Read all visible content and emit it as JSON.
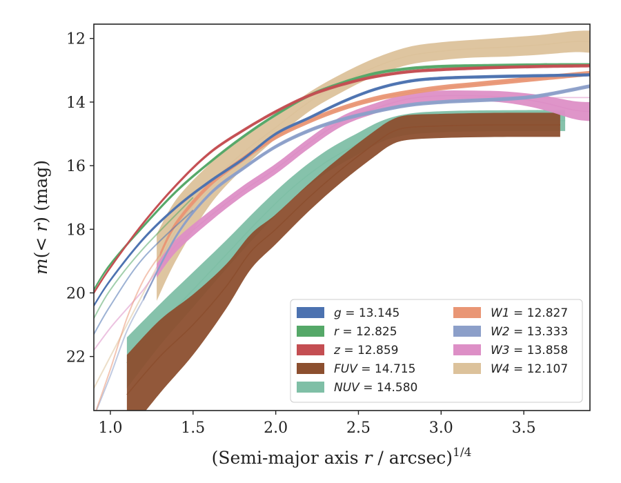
{
  "chart_data": {
    "type": "line",
    "xlabel": "(Semi-major axis r / arcsec)",
    "xlabel_var": "r",
    "xlabel_sup": "1/4",
    "ylabel": "m(< r) (mag)",
    "xlim": [
      0.9,
      3.9
    ],
    "ylim": [
      23.7,
      11.55
    ],
    "y_inverted": true,
    "xticks": [
      "1.0",
      "1.5",
      "2.0",
      "2.5",
      "3.0",
      "3.5"
    ],
    "xtick_values": [
      1.0,
      1.5,
      2.0,
      2.5,
      3.0,
      3.5
    ],
    "yticks": [
      "12",
      "14",
      "16",
      "18",
      "20",
      "22"
    ],
    "ytick_values": [
      12,
      14,
      16,
      18,
      20,
      22
    ],
    "grid": false,
    "legend_position": "lower-right",
    "series": [
      {
        "name": "g",
        "label_value": "= 13.145",
        "color": "#4c72b0",
        "band_width": 0.05,
        "x": [
          0.9,
          1.0,
          1.2,
          1.4,
          1.6,
          1.8,
          2.0,
          2.2,
          2.4,
          2.6,
          2.8,
          3.0,
          3.3,
          3.6,
          3.9
        ],
        "y": [
          20.4,
          19.6,
          18.3,
          17.3,
          16.5,
          15.8,
          15.0,
          14.5,
          14.0,
          13.6,
          13.35,
          13.25,
          13.2,
          13.17,
          13.145
        ],
        "faint_x": [
          0.9,
          1.0,
          1.2,
          1.5
        ],
        "faint_y": [
          21.3,
          20.4,
          18.9,
          17.4
        ]
      },
      {
        "name": "r",
        "label_value": "= 12.825",
        "color": "#55a868",
        "band_width": 0.05,
        "x": [
          0.9,
          1.0,
          1.2,
          1.4,
          1.6,
          1.8,
          2.0,
          2.2,
          2.4,
          2.6,
          2.8,
          3.0,
          3.3,
          3.6,
          3.9
        ],
        "y": [
          19.9,
          19.1,
          17.9,
          16.8,
          15.9,
          15.1,
          14.4,
          13.8,
          13.4,
          13.1,
          12.95,
          12.88,
          12.85,
          12.83,
          12.825
        ],
        "faint_x": [
          0.9,
          1.0,
          1.2,
          1.5
        ],
        "faint_y": [
          20.8,
          19.9,
          18.6,
          17.0
        ]
      },
      {
        "name": "z",
        "label_value": "= 12.859",
        "color": "#c44e52",
        "band_width": 0.05,
        "x": [
          0.9,
          1.0,
          1.2,
          1.4,
          1.6,
          1.8,
          2.0,
          2.2,
          2.4,
          2.6,
          2.8,
          3.0,
          3.3,
          3.6,
          3.9
        ],
        "y": [
          20.0,
          19.2,
          17.8,
          16.6,
          15.6,
          14.9,
          14.3,
          13.8,
          13.45,
          13.2,
          13.05,
          12.98,
          12.92,
          12.88,
          12.859
        ]
      },
      {
        "name": "FUV",
        "label_value": "= 14.715",
        "color": "#8c4f2f",
        "band_width": 0.35,
        "x": [
          1.1,
          1.3,
          1.5,
          1.7,
          1.85,
          2.0,
          2.2,
          2.4,
          2.6,
          2.7,
          2.8,
          3.0,
          3.3,
          3.72
        ],
        "y": [
          23.2,
          22.0,
          21.0,
          19.8,
          18.7,
          18.0,
          17.0,
          16.1,
          15.3,
          14.95,
          14.8,
          14.75,
          14.72,
          14.715
        ],
        "band_extra": [
          0.9,
          0.8,
          0.6,
          0.35,
          0.2,
          0.12,
          0.08,
          0.06,
          0.05,
          0.04,
          0.04,
          0.03,
          0.03,
          0.03
        ]
      },
      {
        "name": "NUV",
        "label_value": "= 14.580",
        "color": "#7fbfa6",
        "band_width": 0.3,
        "x": [
          1.1,
          1.3,
          1.5,
          1.7,
          1.9,
          2.1,
          2.3,
          2.5,
          2.65,
          2.8,
          3.0,
          3.3,
          3.75
        ],
        "y": [
          22.2,
          21.0,
          19.9,
          18.8,
          17.7,
          16.7,
          15.9,
          15.3,
          14.9,
          14.7,
          14.62,
          14.59,
          14.58
        ],
        "band_extra": [
          0.5,
          0.35,
          0.25,
          0.15,
          0.1,
          0.06,
          0.05,
          0.04,
          0.03,
          0.03,
          0.03,
          0.03,
          0.03
        ]
      },
      {
        "name": "W1",
        "label_value": "= 12.827",
        "color": "#e99675",
        "band_width": 0.08,
        "x": [
          1.3,
          1.4,
          1.6,
          1.8,
          2.0,
          2.2,
          2.4,
          2.6,
          2.8,
          3.0,
          3.2,
          3.4,
          3.6,
          3.9
        ],
        "y": [
          18.8,
          17.8,
          16.6,
          15.8,
          15.1,
          14.6,
          14.2,
          13.9,
          13.7,
          13.55,
          13.45,
          13.35,
          13.25,
          13.1
        ],
        "faint_x": [
          0.9,
          1.0,
          1.1,
          1.2,
          1.3
        ],
        "faint_y": [
          23.9,
          22.4,
          20.8,
          19.6,
          18.8
        ]
      },
      {
        "name": "W2",
        "label_value": "= 13.333",
        "color": "#8c9fc9",
        "band_width": 0.06,
        "x": [
          1.2,
          1.4,
          1.6,
          1.8,
          2.0,
          2.2,
          2.4,
          2.6,
          2.8,
          3.0,
          3.2,
          3.4,
          3.6,
          3.9
        ],
        "y": [
          20.2,
          18.2,
          16.9,
          16.1,
          15.4,
          14.9,
          14.55,
          14.3,
          14.1,
          14.0,
          13.95,
          13.9,
          13.8,
          13.5
        ],
        "faint_x": [
          0.9,
          1.0,
          1.1,
          1.2
        ],
        "faint_y": [
          23.9,
          22.6,
          21.2,
          20.2
        ]
      },
      {
        "name": "W3",
        "label_value": "= 13.858",
        "color": "#dd8fc6",
        "band_width": 0.12,
        "x": [
          1.28,
          1.4,
          1.6,
          1.8,
          2.0,
          2.2,
          2.4,
          2.6,
          2.8,
          3.0,
          3.2,
          3.4,
          3.6,
          3.8,
          3.9
        ],
        "y": [
          19.3,
          18.5,
          17.6,
          16.8,
          16.1,
          15.3,
          14.6,
          14.2,
          13.9,
          13.8,
          13.8,
          13.85,
          14.0,
          14.25,
          14.3
        ],
        "band_extra": [
          0.1,
          0.08,
          0.05,
          0.04,
          0.04,
          0.04,
          0.04,
          0.04,
          0.04,
          0.04,
          0.04,
          0.06,
          0.1,
          0.16,
          0.18
        ],
        "faint_x": [
          0.9,
          1.0,
          1.1,
          1.2,
          1.28
        ],
        "faint_y": [
          21.8,
          21.1,
          20.5,
          19.9,
          19.3
        ],
        "flat_value": 13.858,
        "flat_from": 3.1
      },
      {
        "name": "W4",
        "label_value": "= 12.107",
        "color": "#dcc29b",
        "band_width": 0.25,
        "x": [
          1.28,
          1.4,
          1.6,
          1.8,
          2.0,
          2.2,
          2.4,
          2.6,
          2.8,
          3.0,
          3.2,
          3.4,
          3.6,
          3.8,
          3.9
        ],
        "y": [
          19.2,
          18.0,
          16.6,
          15.6,
          14.8,
          14.0,
          13.4,
          12.9,
          12.55,
          12.4,
          12.32,
          12.27,
          12.2,
          12.1,
          12.1
        ],
        "band_extra": [
          0.8,
          0.7,
          0.4,
          0.25,
          0.1,
          0.05,
          0.04,
          0.03,
          0.03,
          0.03,
          0.03,
          0.05,
          0.06,
          0.08,
          0.1
        ],
        "faint_x": [
          0.9,
          1.0,
          1.1,
          1.2,
          1.28
        ],
        "faint_y": [
          23.0,
          22.0,
          21.0,
          20.0,
          19.2
        ]
      }
    ],
    "legend_columns": [
      [
        "g",
        "r",
        "z",
        "FUV",
        "NUV"
      ],
      [
        "W1",
        "W2",
        "W3",
        "W4"
      ]
    ]
  }
}
